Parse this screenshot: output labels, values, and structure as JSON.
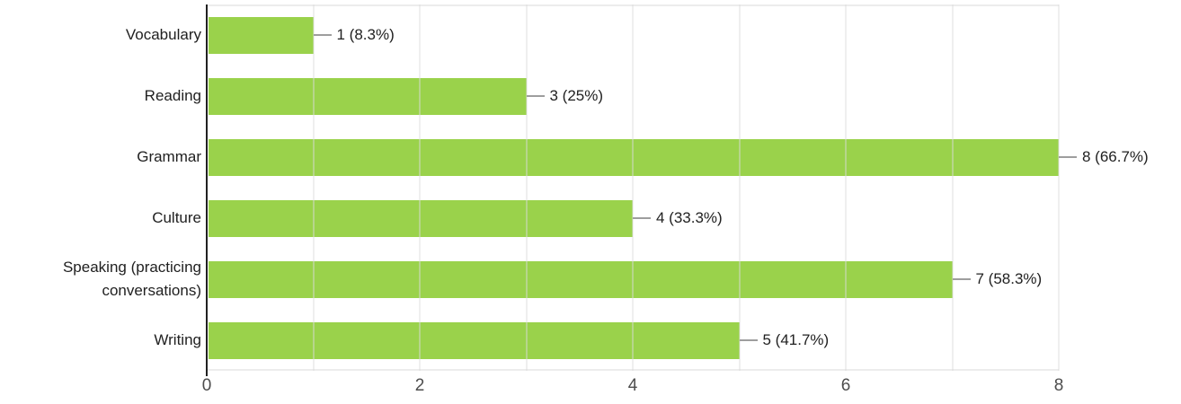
{
  "chart_data": {
    "type": "bar",
    "orientation": "horizontal",
    "title": "",
    "xlabel": "",
    "ylabel": "",
    "categories": [
      "Vocabulary",
      "Reading",
      "Grammar",
      "Culture",
      "Speaking (practicing conversations)",
      "Writing"
    ],
    "values": [
      1,
      3,
      8,
      4,
      7,
      5
    ],
    "value_labels": [
      "1 (8.3%)",
      "3 (25%)",
      "8 (66.7%)",
      "4 (33.3%)",
      "7 (58.3%)",
      "5 (41.7%)"
    ],
    "xlim": [
      0,
      8
    ],
    "x_ticks": {
      "values": [
        0,
        2,
        4,
        6,
        8
      ],
      "labels": [
        "0",
        "2",
        "4",
        "6",
        "8"
      ]
    },
    "minor_gridline_unit": 1,
    "grid": true,
    "legend": false,
    "colors": {
      "bar": "#9ad24b",
      "gridline_over": "rgba(220,220,220,0.45)",
      "plot_border": "#ececec",
      "axis": "#212121",
      "connector": "#9e9e9e",
      "category_text": "#212121",
      "value_text": "#212121",
      "tick_text": "#4d4d4d",
      "background": "#ffffff"
    }
  }
}
